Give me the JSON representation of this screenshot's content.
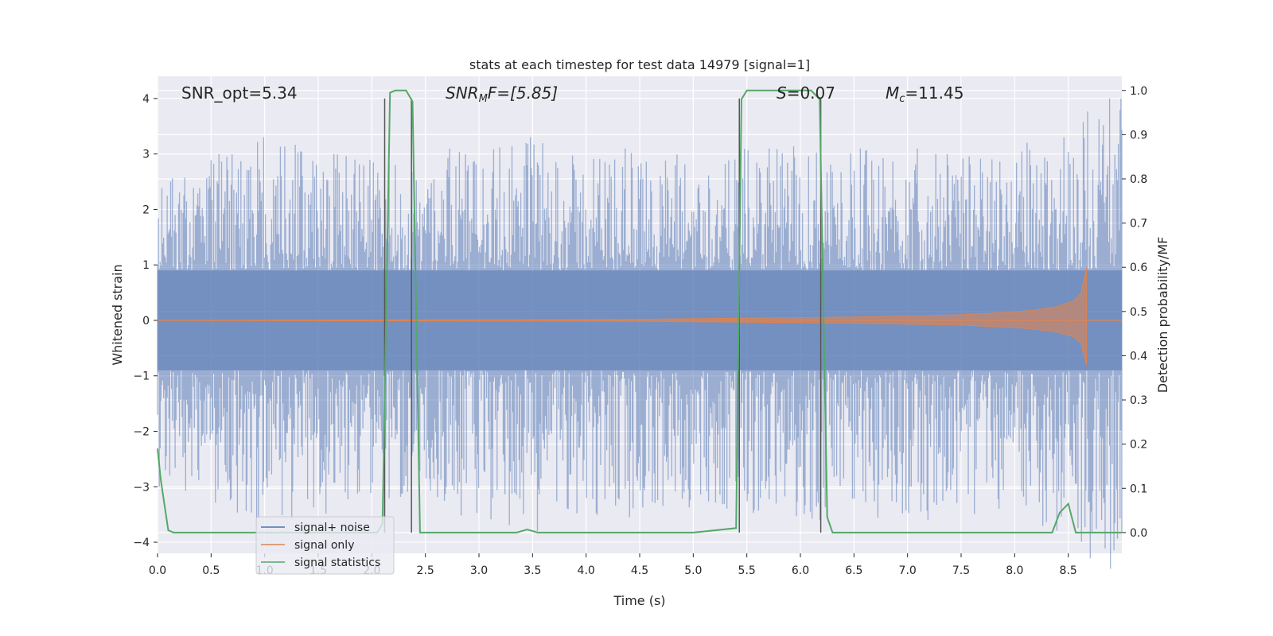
{
  "chart_data": {
    "type": "line",
    "title": "stats at each timestep for test data 14979 [signal=1]",
    "xlabel": "Time (s)",
    "ylabel": "Whitened strain",
    "y2label": "Detection probability/MF",
    "xlim": [
      0,
      9.0
    ],
    "ylim": [
      -4.2,
      4.4
    ],
    "y2lim": [
      -0.047,
      1.032
    ],
    "x_ticks": [
      "0.0",
      "0.5",
      "1.0",
      "1.5",
      "2.0",
      "2.5",
      "3.0",
      "3.5",
      "4.0",
      "4.5",
      "5.0",
      "5.5",
      "6.0",
      "6.5",
      "7.0",
      "7.5",
      "8.0",
      "8.5"
    ],
    "y_ticks": [
      "4",
      "3",
      "2",
      "1",
      "0",
      "−1",
      "−2",
      "−3",
      "−4"
    ],
    "y2_ticks": [
      "1.0",
      "0.9",
      "0.8",
      "0.7",
      "0.6",
      "0.5",
      "0.4",
      "0.3",
      "0.2",
      "0.1",
      "0.0"
    ],
    "grid": true,
    "legend_position": "lower-left",
    "annotations": {
      "snr_opt": "SNR_opt=5.34",
      "snr_mf": "SNR",
      "snr_mf_sub": "M",
      "snr_mf_rest": "F=[5.85]",
      "s_label": "S",
      "s_rest": "=0.07",
      "mc_label": "M",
      "mc_sub": "c",
      "mc_rest": "=11.45"
    },
    "vertical_markers": [
      2.12,
      2.37,
      5.43,
      6.19
    ],
    "series": [
      {
        "name": "signal+ noise",
        "color": "#4c72b0",
        "description_amplitude_envelope": [
          2.6,
          3.0,
          3.3,
          3.0,
          2.9,
          2.8,
          3.1,
          3.3,
          3.0,
          3.1,
          3.0,
          2.9,
          3.1,
          3.2,
          3.1,
          3.1,
          3.0,
          3.1,
          3.3,
          4.0
        ]
      },
      {
        "name": "signal only",
        "color": "#dd8452",
        "x": [
          0,
          4.5,
          5.0,
          5.5,
          6.0,
          6.5,
          7.0,
          7.5,
          7.8,
          8.0,
          8.2,
          8.4,
          8.55,
          8.62,
          8.67
        ],
        "values": [
          0,
          0.02,
          0.03,
          0.04,
          0.05,
          0.06,
          0.08,
          0.1,
          0.13,
          0.15,
          0.19,
          0.25,
          0.35,
          0.5,
          0.95
        ]
      },
      {
        "name": "signal statistics",
        "color": "#55a868",
        "x": [
          0.0,
          0.03,
          0.1,
          0.15,
          2.05,
          2.1,
          2.17,
          2.22,
          2.32,
          2.38,
          2.45,
          3.35,
          3.45,
          3.55,
          5.0,
          5.4,
          5.45,
          5.5,
          6.1,
          6.18,
          6.25,
          6.3,
          8.35,
          8.42,
          8.5,
          8.57,
          8.65,
          9.0
        ],
        "values": [
          0.19,
          0.12,
          0.005,
          0.0,
          0.0,
          0.02,
          0.995,
          1.0,
          1.0,
          0.975,
          0.0,
          0.0,
          0.007,
          0.0,
          0.0,
          0.01,
          0.98,
          1.0,
          1.0,
          0.98,
          0.035,
          0.0,
          0.0,
          0.045,
          0.065,
          0.0,
          0.0,
          0.0
        ]
      }
    ]
  }
}
